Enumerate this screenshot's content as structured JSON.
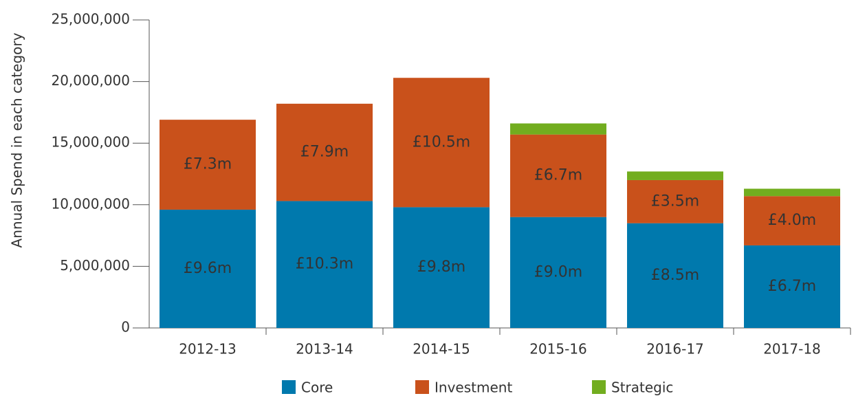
{
  "chart_data": {
    "type": "stacked_bar",
    "y_label": "Annual Spend in each category",
    "categories": [
      "2012-13",
      "2013-14",
      "2014-15",
      "2015-16",
      "2016-17",
      "2017-18"
    ],
    "series": [
      {
        "name": "Core",
        "color": "#0079ad",
        "values": [
          9600000,
          10300000,
          9800000,
          9000000,
          8500000,
          6700000
        ],
        "value_labels": [
          "£9.6m",
          "£10.3m",
          "£9.8m",
          "£9.0m",
          "£8.5m",
          "£6.7m"
        ]
      },
      {
        "name": "Investment",
        "color": "#c9511b",
        "values": [
          7300000,
          7900000,
          10500000,
          6700000,
          3500000,
          4000000
        ],
        "value_labels": [
          "£7.3m",
          "£7.9m",
          "£10.5m",
          "£6.7m",
          "£3.5m",
          "£4.0m"
        ]
      },
      {
        "name": "Strategic",
        "color": "#72ad1f",
        "values": [
          0,
          0,
          0,
          900000,
          700000,
          600000
        ]
      }
    ],
    "ylim": [
      0,
      25000000
    ],
    "yticks": [
      0,
      {
        "value": 5000000,
        "label": "5,000,000"
      },
      {
        "value": 10000000,
        "label": "10,000,000"
      },
      {
        "value": 15000000,
        "label": "15,000,000"
      },
      {
        "value": 20000000,
        "label": "20,000,000"
      },
      {
        "value": 25000000,
        "label": "25,000,000"
      }
    ],
    "legend": "bottom"
  }
}
